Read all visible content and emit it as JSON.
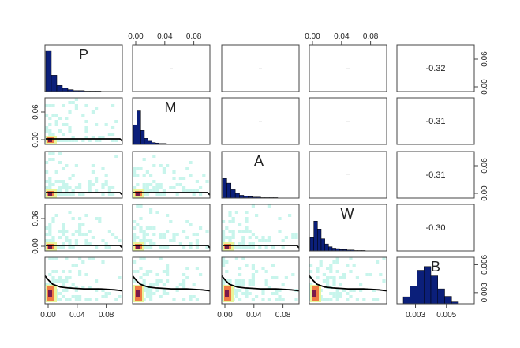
{
  "chart_data": {
    "type": "scatterplot-matrix",
    "variables": [
      "P",
      "M",
      "A",
      "W",
      "B"
    ],
    "correlations_with_B": {
      "P": -0.32,
      "M": -0.31,
      "A": -0.31,
      "W": -0.3
    },
    "correlation_labels": [
      "-0.32",
      "-0.31",
      "-0.31",
      "-0.30"
    ],
    "axis_ticks": {
      "x_main": [
        "0.00",
        "0.04",
        "0.08"
      ],
      "y_main": [
        "0.00",
        "0.06"
      ],
      "x_B": [
        "0.003",
        "0.005"
      ],
      "y_B": [
        "0.003",
        "0.006"
      ]
    },
    "axis_ranges": {
      "main": [
        0,
        0.1
      ],
      "B": [
        0.0018,
        0.0068
      ]
    },
    "histograms": {
      "P": [
        0.88,
        0.35,
        0.13,
        0.07,
        0.04,
        0.02,
        0.02,
        0.01,
        0.01,
        0.01
      ],
      "M": [
        0.42,
        0.72,
        0.3,
        0.13,
        0.07,
        0.04,
        0.03,
        0.02,
        0.02,
        0.01,
        0.01,
        0.01,
        0.01,
        0.01,
        0.01
      ],
      "A": [
        0.42,
        0.32,
        0.18,
        0.1,
        0.06,
        0.04,
        0.03,
        0.02,
        0.02,
        0.01,
        0.01,
        0.01,
        0.01
      ],
      "W": [
        0.3,
        0.64,
        0.47,
        0.26,
        0.15,
        0.09,
        0.06,
        0.05,
        0.03,
        0.03,
        0.02,
        0.02,
        0.01,
        0.01,
        0.01
      ],
      "B": [
        0.15,
        0.38,
        0.72,
        0.8,
        0.6,
        0.32,
        0.16,
        0.04
      ]
    },
    "smooth_fit_vs_B": [
      [
        0.0,
        0.0048
      ],
      [
        0.005,
        0.0043
      ],
      [
        0.01,
        0.0039
      ],
      [
        0.02,
        0.0036
      ],
      [
        0.03,
        0.0035
      ],
      [
        0.05,
        0.0034
      ],
      [
        0.07,
        0.0034
      ],
      [
        0.09,
        0.0033
      ],
      [
        0.1,
        0.0032
      ]
    ],
    "smooth_fit_pairwise": [
      [
        0.0,
        0.007
      ],
      [
        0.01,
        0.006
      ],
      [
        0.03,
        0.006
      ],
      [
        0.06,
        0.0055
      ],
      [
        0.09,
        0.005
      ],
      [
        0.1,
        0.003
      ]
    ],
    "colors": {
      "hist_fill": "#0b1f7a",
      "density_low": "#c8f5ec",
      "density_mid": "#e9f59a",
      "density_high": "#f07a43",
      "density_peak": "#7a1a4b",
      "fit_line": "#000000",
      "frame": "#444444"
    }
  }
}
